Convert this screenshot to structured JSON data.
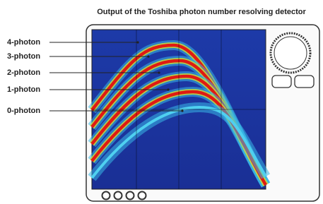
{
  "header": {
    "title": "Output of the Toshiba photon number resolving detector"
  },
  "labels": [
    "4-photon",
    "3-photon",
    "2-photon",
    "1-photon",
    "0-photon"
  ]
}
